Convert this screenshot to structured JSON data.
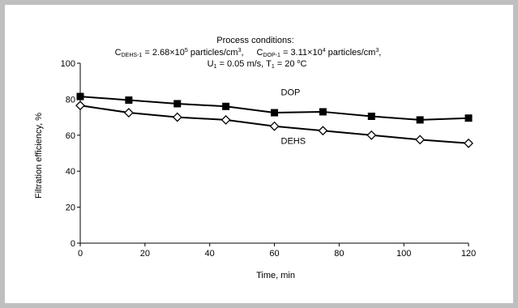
{
  "chart_data": {
    "type": "line",
    "title": "Process conditions:",
    "conditions": {
      "c_dehs_symbol": "C",
      "c_dehs_sub": "DEHS-1",
      "c_dehs_value": " = 2.68×10",
      "c_dehs_exp": "5",
      "c_dehs_unit": " particles/cm",
      "c_dehs_unit_exp": "3",
      "c_dehs_tail": ",",
      "c_dop_symbol": "C",
      "c_dop_sub": "DOP-1",
      "c_dop_value": " = 3.11×10",
      "c_dop_exp": "4",
      "c_dop_unit": " particles/cm",
      "c_dop_unit_exp": "3",
      "c_dop_tail": ",",
      "u_symbol": "U",
      "u_sub": "1",
      "u_value": " = 0.05 m/s, T",
      "t_sub": "1",
      "t_value": " = 20 ",
      "t_deg": "o",
      "t_unit": "C"
    },
    "xlabel": "Time, min",
    "ylabel": "Filtration efficiency, %",
    "xlim": [
      0,
      120
    ],
    "ylim": [
      0,
      100
    ],
    "xticks": [
      0,
      20,
      40,
      60,
      80,
      100,
      120
    ],
    "yticks": [
      0,
      20,
      40,
      60,
      80,
      100
    ],
    "grid": false,
    "x": [
      0,
      15,
      30,
      45,
      60,
      75,
      90,
      105,
      120
    ],
    "series": [
      {
        "name": "DOP",
        "marker": "filled-square",
        "values": [
          81.5,
          79.5,
          77.5,
          76,
          72.5,
          73,
          70.5,
          68.5,
          69.5
        ],
        "label_at": [
          60,
          84
        ]
      },
      {
        "name": "DEHS",
        "marker": "open-diamond",
        "values": [
          76.5,
          72.5,
          70,
          68.5,
          65,
          62.5,
          60,
          57.5,
          55.5
        ],
        "label_at": [
          60,
          57
        ]
      }
    ]
  }
}
